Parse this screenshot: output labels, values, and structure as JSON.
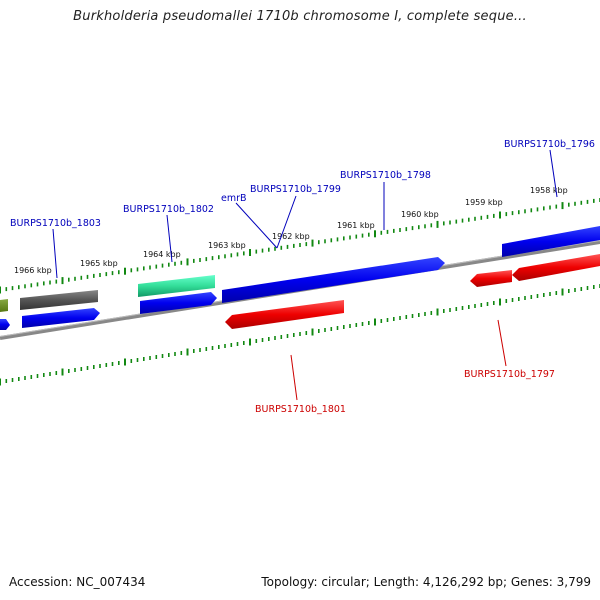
{
  "title": "Burkholderia pseudomallei 1710b chromosome I, complete seque...",
  "footer": {
    "accession": "Accession: NC_007434",
    "summary": "Topology: circular; Length: 4,126,292 bp; Genes: 3,799"
  },
  "kbp_labels": [
    "1966 kbp",
    "1965 kbp",
    "1964 kbp",
    "1963 kbp",
    "1962 kbp",
    "1961 kbp",
    "1960 kbp",
    "1959 kbp",
    "1958 kbp"
  ],
  "gene_labels": [
    {
      "text": "BURPS1710b_1803",
      "color": "#0000bb"
    },
    {
      "text": "BURPS1710b_1802",
      "color": "#0000bb"
    },
    {
      "text": "emrB",
      "color": "#0000bb"
    },
    {
      "text": "BURPS1710b_1799",
      "color": "#0000bb"
    },
    {
      "text": "BURPS1710b_1798",
      "color": "#0000bb"
    },
    {
      "text": "BURPS1710b_1796",
      "color": "#0000bb"
    },
    {
      "text": "BURPS1710b_1801",
      "color": "#cc0000"
    },
    {
      "text": "BURPS1710b_1797",
      "color": "#cc0000"
    }
  ],
  "colors": {
    "forward_gene": "#0000ff",
    "reverse_gene": "#ff0000",
    "gray_gene": "#555555",
    "teal_gene": "#33dd99",
    "olive_gene": "#668822",
    "backbone": "#888888",
    "tick": "#118811"
  }
}
